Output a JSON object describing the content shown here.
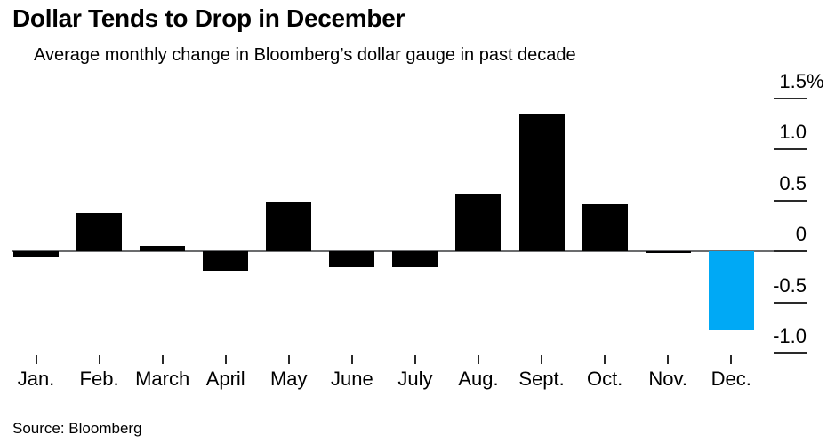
{
  "header": {
    "title": "Dollar Tends to Drop in December",
    "legend": {
      "swatch_color": "#000000",
      "label": "Average monthly change in Bloomberg’s dollar gauge in past decade"
    }
  },
  "chart_data": {
    "type": "bar",
    "title": "Dollar Tends to Drop in December",
    "legend_label": "Average monthly change in Bloomberg’s dollar gauge in past decade",
    "categories": [
      "Jan.",
      "Feb.",
      "March",
      "April",
      "May",
      "June",
      "July",
      "Aug.",
      "Sept.",
      "Oct.",
      "Nov.",
      "Dec."
    ],
    "values": [
      -0.05,
      0.37,
      0.05,
      -0.19,
      0.49,
      -0.16,
      -0.16,
      0.56,
      1.35,
      0.46,
      -0.02,
      -0.77
    ],
    "unit": "%",
    "xlabel": "",
    "ylabel": "",
    "ylim": [
      -1.15,
      1.75
    ],
    "axis_side": "right",
    "grid": false,
    "bar_color": "#000000",
    "highlight_category": "Dec.",
    "highlight_color": "#00a9f5",
    "zero_line_color": "#6b6c6e",
    "tick_color": "#2a2a2a",
    "y_ticks": [
      {
        "label": "1.5",
        "suffix": "%",
        "value": 1.5
      },
      {
        "label": "1.0",
        "suffix": "",
        "value": 1.0
      },
      {
        "label": "0.5",
        "suffix": "",
        "value": 0.5
      },
      {
        "label": "0",
        "suffix": "",
        "value": 0.0
      },
      {
        "label": "-0.5",
        "suffix": "",
        "value": -0.5
      },
      {
        "label": "-1.0",
        "suffix": "",
        "value": -1.0
      }
    ]
  },
  "footer": {
    "source": "Source: Bloomberg"
  }
}
